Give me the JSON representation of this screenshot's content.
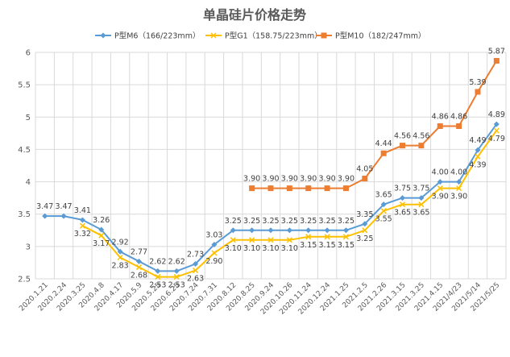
{
  "chart_data": {
    "type": "line",
    "title": "单晶硅片价格走势",
    "xlabel": "",
    "ylabel": "",
    "ylim": [
      2.5,
      6
    ],
    "yticks": [
      "2.5",
      "3",
      "3.5",
      "4",
      "4.5",
      "5",
      "5.5",
      "6"
    ],
    "grid": true,
    "legend_position": "top",
    "categories": [
      "2020.1.21",
      "2020.2.24",
      "2020.3.25",
      "2020.4.8",
      "2020.4.17",
      "2020.5.9",
      "2020.5.25",
      "2020.6.25",
      "2020.7.24",
      "2020.7.31",
      "2020.8.12",
      "2020.8.25",
      "2020.9.24",
      "2020.10.26",
      "2020.11.24",
      "2020.12.24",
      "2021.1.25",
      "2021.2.5",
      "2021.2.26",
      "2021.3.15",
      "2021.3.25",
      "2021.4.15",
      "2021/4/23",
      "2021/5/14",
      "2021/5/25"
    ],
    "series": [
      {
        "name": "P型M6（166/223mm）",
        "color": "#5b9bd5",
        "marker": "diamond",
        "values": [
          3.47,
          3.47,
          3.41,
          3.26,
          2.92,
          2.77,
          2.62,
          2.62,
          2.73,
          3.03,
          3.25,
          3.25,
          3.25,
          3.25,
          3.25,
          3.25,
          3.25,
          3.35,
          3.65,
          3.75,
          3.75,
          4.0,
          4.0,
          4.49,
          4.89
        ],
        "labels": [
          "3.47",
          "3.47",
          "3.41",
          "3.26",
          "2.92",
          "2.77",
          "2.62",
          "2.62",
          "2.73",
          "3.03",
          "3.25",
          "3.25",
          "3.25",
          "3.25",
          "3.25",
          "3.25",
          "3.25",
          "3.35",
          "3.65",
          "3.75",
          "3.75",
          "4.00",
          "4.00",
          "4.49",
          "4.89"
        ]
      },
      {
        "name": "P型G1（158.75/223mm）",
        "color": "#ffc000",
        "marker": "x",
        "values": [
          null,
          null,
          3.32,
          3.17,
          2.83,
          2.68,
          2.53,
          2.53,
          2.63,
          2.9,
          3.1,
          3.1,
          3.1,
          3.1,
          3.15,
          3.15,
          3.15,
          3.25,
          3.55,
          3.65,
          3.65,
          3.9,
          3.9,
          4.39,
          4.79
        ],
        "labels": [
          null,
          null,
          "3.32",
          "3.17",
          "2.83",
          "2.68",
          "2.53",
          "2.53",
          "2.63",
          "2.90",
          "3.10",
          "3.10",
          "3.10",
          "3.10",
          "3.15",
          "3.15",
          "3.15",
          "3.25",
          "3.55",
          "3.65",
          "3.65",
          "3.90",
          "3.90",
          "4.39",
          "4.79"
        ]
      },
      {
        "name": "P型M10（182/247mm）",
        "color": "#ed7d31",
        "marker": "square",
        "values": [
          null,
          null,
          null,
          null,
          null,
          null,
          null,
          null,
          null,
          null,
          null,
          3.9,
          3.9,
          3.9,
          3.9,
          3.9,
          3.9,
          4.05,
          4.44,
          4.56,
          4.56,
          4.86,
          4.86,
          5.39,
          5.87
        ],
        "labels": [
          null,
          null,
          null,
          null,
          null,
          null,
          null,
          null,
          null,
          null,
          null,
          "3.90",
          "3.90",
          "3.90",
          "3.90",
          "3.90",
          "3.90",
          "4.05",
          "4.44",
          "4.56",
          "4.56",
          "4.86",
          "4.86",
          "5.39",
          "5.87"
        ]
      }
    ]
  }
}
